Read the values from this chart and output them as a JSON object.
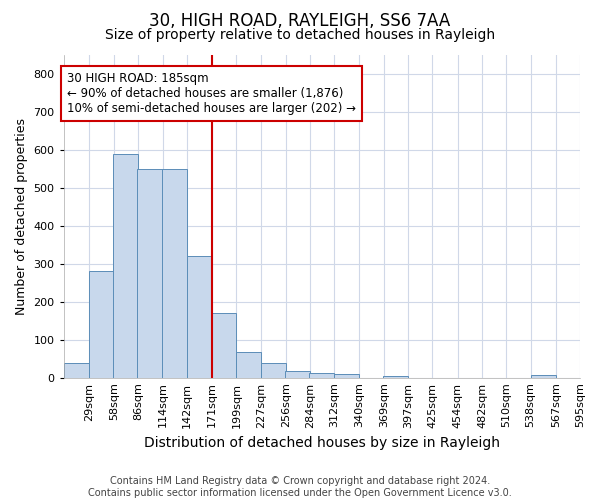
{
  "title": "30, HIGH ROAD, RAYLEIGH, SS6 7AA",
  "subtitle": "Size of property relative to detached houses in Rayleigh",
  "xlabel": "Distribution of detached houses by size in Rayleigh",
  "ylabel": "Number of detached properties",
  "categories": [
    "29sqm",
    "58sqm",
    "86sqm",
    "114sqm",
    "142sqm",
    "171sqm",
    "199sqm",
    "227sqm",
    "256sqm",
    "284sqm",
    "312sqm",
    "340sqm",
    "369sqm",
    "397sqm",
    "425sqm",
    "454sqm",
    "482sqm",
    "510sqm",
    "538sqm",
    "567sqm",
    "595sqm"
  ],
  "values": [
    38,
    280,
    590,
    550,
    550,
    320,
    170,
    67,
    38,
    18,
    12,
    10,
    0,
    5,
    0,
    0,
    0,
    0,
    0,
    8,
    0
  ],
  "bar_color": "#c8d8ec",
  "bar_edge_color": "#5b8db8",
  "bg_color": "#ffffff",
  "plot_bg_color": "#ffffff",
  "grid_color": "#d0d8e8",
  "annotation_text": "30 HIGH ROAD: 185sqm\n← 90% of detached houses are smaller (1,876)\n10% of semi-detached houses are larger (202) →",
  "annotation_box_facecolor": "#ffffff",
  "annotation_box_edgecolor": "#cc0000",
  "vline_color": "#cc0000",
  "vline_x_idx": 5,
  "ylim": [
    0,
    850
  ],
  "yticks": [
    0,
    100,
    200,
    300,
    400,
    500,
    600,
    700,
    800
  ],
  "title_fontsize": 12,
  "subtitle_fontsize": 10,
  "xlabel_fontsize": 10,
  "ylabel_fontsize": 9,
  "tick_fontsize": 8,
  "annot_fontsize": 8.5,
  "footer_fontsize": 7,
  "footer": "Contains HM Land Registry data © Crown copyright and database right 2024.\nContains public sector information licensed under the Open Government Licence v3.0."
}
